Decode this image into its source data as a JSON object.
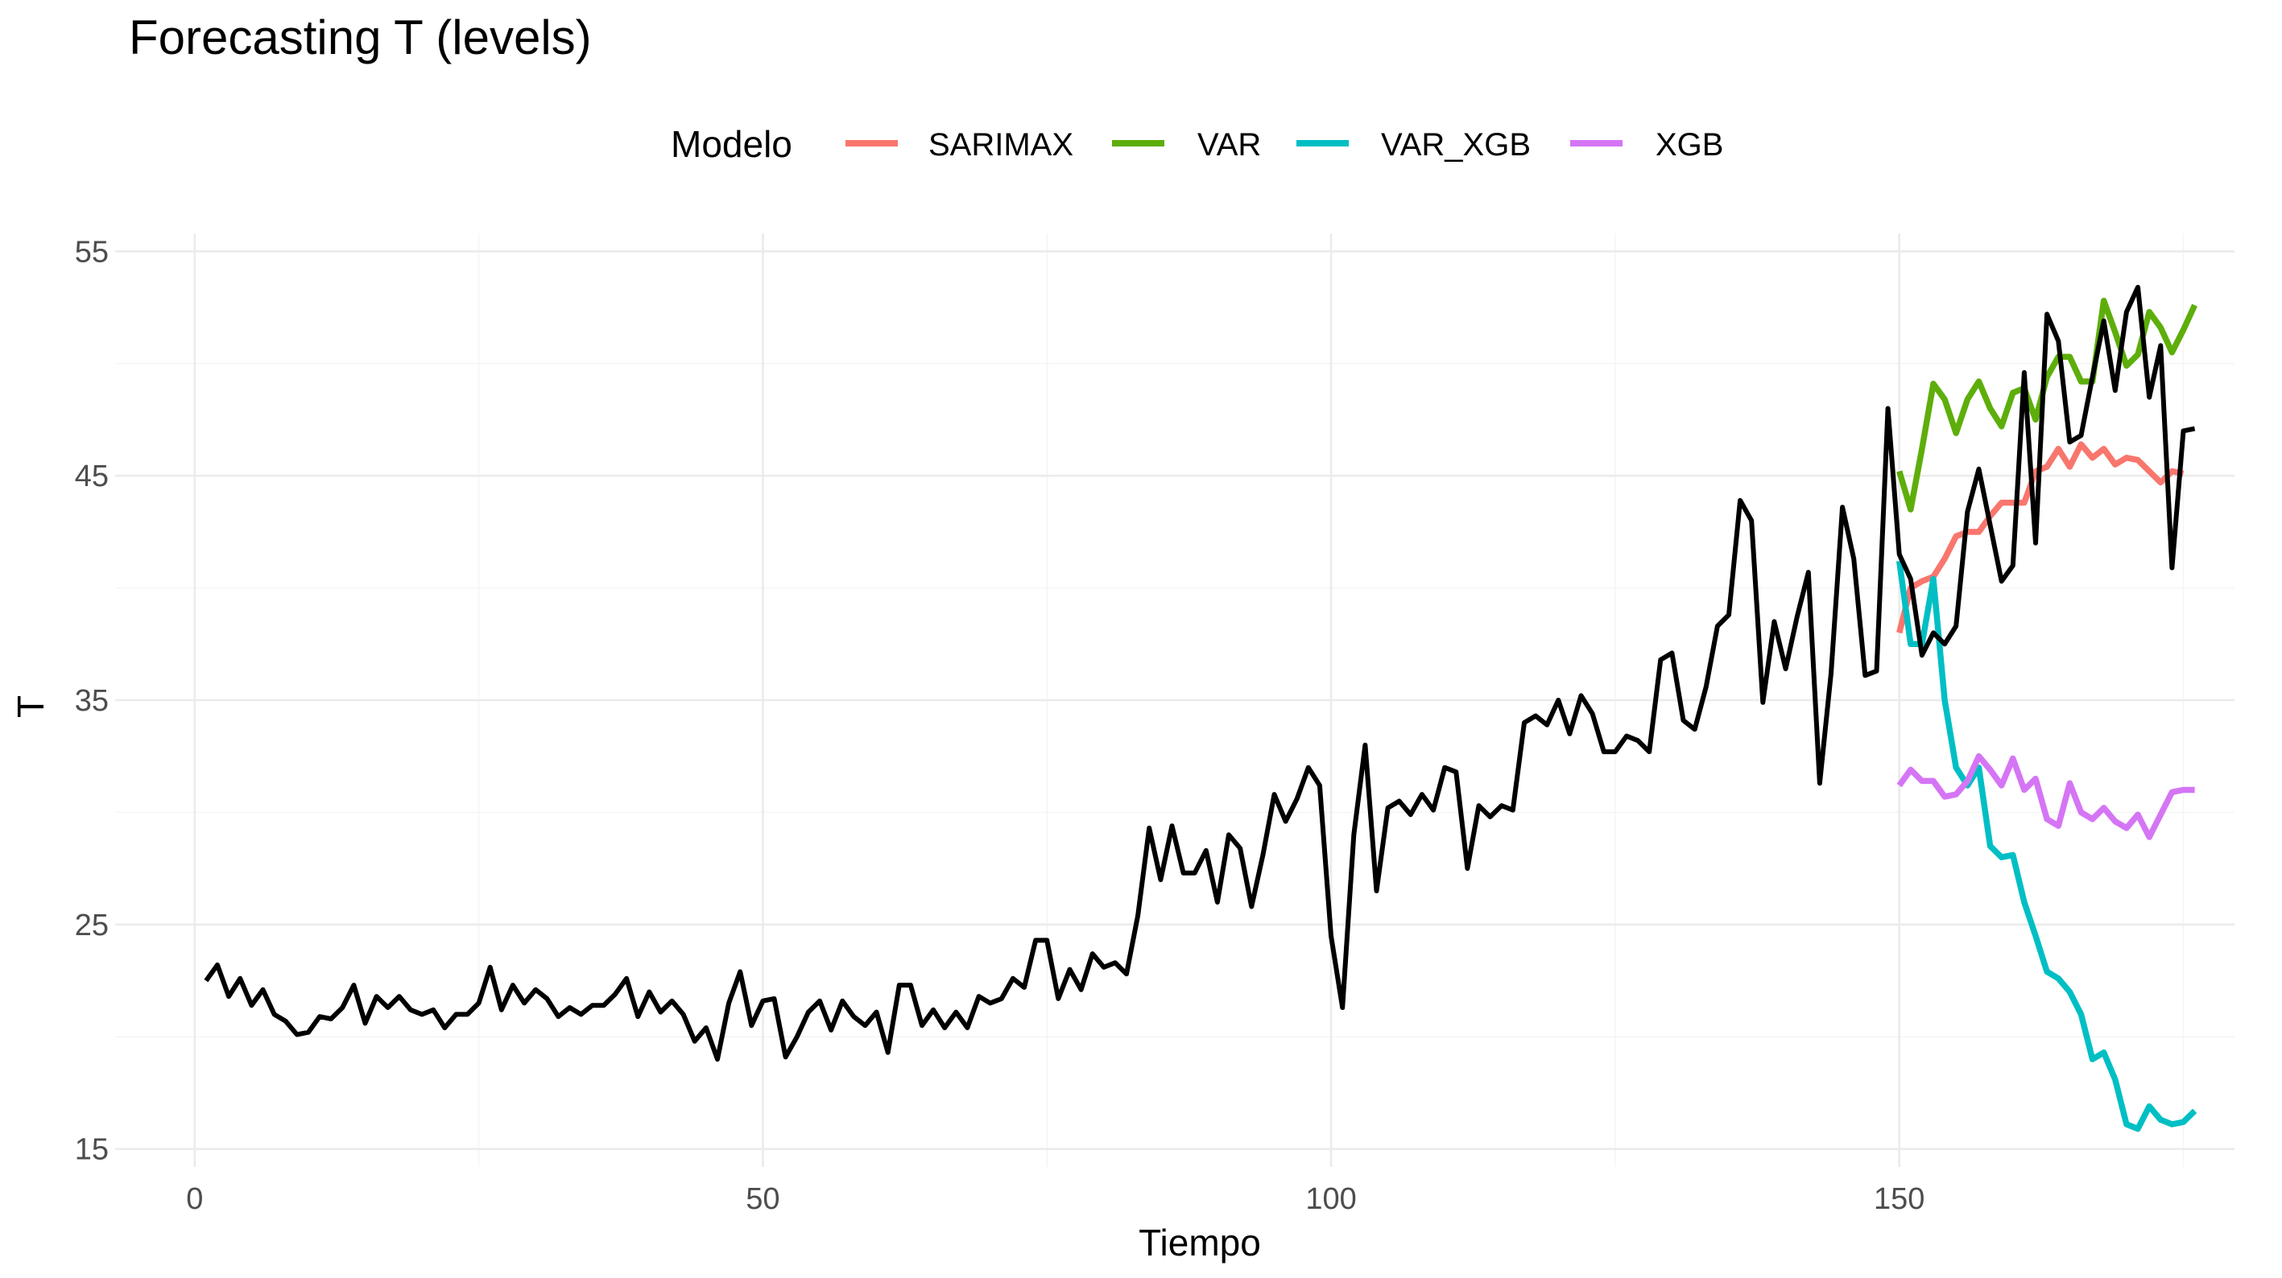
{
  "chart_data": {
    "type": "line",
    "title": "Forecasting T (levels)",
    "xlabel": "Tiempo",
    "ylabel": "T",
    "xlim": [
      -7,
      179.5
    ],
    "ylim": [
      14.2,
      55.8
    ],
    "x_ticks": [
      0,
      50,
      100,
      150
    ],
    "y_ticks": [
      15,
      25,
      35,
      45,
      55
    ],
    "grid": true,
    "legend": {
      "title": "Modelo",
      "position": "top",
      "entries": [
        "SARIMAX",
        "VAR",
        "VAR_XGB",
        "XGB"
      ]
    },
    "colors": {
      "observed": "#000000",
      "SARIMAX": "#F8766D",
      "VAR": "#5DAE0B",
      "VAR_XGB": "#00BFC4",
      "XGB": "#D575F5"
    },
    "observed": {
      "x_start": 1,
      "values": [
        22.5,
        23.2,
        21.8,
        22.6,
        21.4,
        22.1,
        21.0,
        20.7,
        20.1,
        20.2,
        20.9,
        20.8,
        21.3,
        22.3,
        20.6,
        21.8,
        21.3,
        21.8,
        21.2,
        21.0,
        21.2,
        20.4,
        21.0,
        21.0,
        21.5,
        23.1,
        21.2,
        22.3,
        21.5,
        22.1,
        21.7,
        20.9,
        21.3,
        21.0,
        21.4,
        21.4,
        21.9,
        22.6,
        20.9,
        22.0,
        21.1,
        21.6,
        21.0,
        19.8,
        20.4,
        19.0,
        21.5,
        22.9,
        20.5,
        21.6,
        21.7,
        19.1,
        20.0,
        21.1,
        21.6,
        20.3,
        21.6,
        20.9,
        20.5,
        21.1,
        19.3,
        22.3,
        22.3,
        20.5,
        21.2,
        20.4,
        21.1,
        20.4,
        21.8,
        21.5,
        21.7,
        22.6,
        22.2,
        24.3,
        24.3,
        21.7,
        23.0,
        22.1,
        23.7,
        23.1,
        23.3,
        22.8,
        25.4,
        29.3,
        27.0,
        29.4,
        27.3,
        27.3,
        28.3,
        26.0,
        29.0,
        28.4,
        25.8,
        28.1,
        30.8,
        29.6,
        30.6,
        32.0,
        31.2,
        24.5,
        21.3,
        29.0,
        33.0,
        26.5,
        30.2,
        30.5,
        29.9,
        30.8,
        30.1,
        32.0,
        31.8,
        27.5,
        30.3,
        29.8,
        30.3,
        30.1,
        34.0,
        34.3,
        33.9,
        35.0,
        33.5,
        35.2,
        34.4,
        32.7,
        32.7,
        33.4,
        33.2,
        32.7,
        36.8,
        37.1,
        34.1,
        33.7,
        35.6,
        38.3,
        38.8,
        43.9,
        43.0,
        34.9,
        38.5,
        36.4,
        38.7,
        40.7,
        31.3,
        36.2,
        43.6,
        41.3,
        36.1,
        36.3,
        48.0,
        41.5,
        40.4,
        37.0,
        38.0,
        37.5,
        38.3,
        43.4,
        45.3,
        42.8,
        40.3,
        41.0,
        49.6,
        42.0,
        52.2,
        51.0,
        46.5,
        46.8,
        49.4,
        51.9,
        48.8,
        52.3,
        53.4,
        48.5,
        50.8,
        40.9,
        47.0,
        47.1
      ]
    },
    "series": [
      {
        "name": "SARIMAX",
        "x_start": 150,
        "values": [
          38.0,
          40.0,
          40.3,
          40.5,
          41.3,
          42.3,
          42.5,
          42.5,
          43.2,
          43.8,
          43.8,
          43.8,
          45.2,
          45.4,
          46.2,
          45.4,
          46.4,
          45.8,
          46.2,
          45.5,
          45.8,
          45.7,
          45.2,
          44.7,
          45.2,
          45.1
        ]
      },
      {
        "name": "VAR",
        "x_start": 150,
        "values": [
          45.2,
          43.5,
          46.2,
          49.1,
          48.4,
          46.9,
          48.4,
          49.2,
          48.0,
          47.2,
          48.7,
          48.9,
          47.5,
          49.4,
          50.3,
          50.3,
          49.2,
          49.2,
          52.8,
          51.4,
          49.9,
          50.4,
          52.3,
          51.6,
          50.5,
          51.5,
          52.6
        ]
      },
      {
        "name": "VAR_XGB",
        "x_start": 150,
        "values": [
          41.2,
          37.5,
          37.5,
          40.4,
          35.0,
          32.0,
          31.2,
          32.0,
          28.5,
          28.0,
          28.1,
          26.0,
          24.5,
          22.9,
          22.6,
          22.0,
          21.0,
          19.0,
          19.3,
          18.1,
          16.1,
          15.9,
          16.9,
          16.3,
          16.1,
          16.2,
          16.7
        ]
      },
      {
        "name": "XGB",
        "x_start": 150,
        "values": [
          31.2,
          31.9,
          31.4,
          31.4,
          30.7,
          30.8,
          31.4,
          32.5,
          31.9,
          31.2,
          32.4,
          31.0,
          31.5,
          29.7,
          29.4,
          31.3,
          30.0,
          29.7,
          30.2,
          29.6,
          29.3,
          29.9,
          28.9,
          29.9,
          30.9,
          31.0,
          31.0
        ]
      }
    ]
  }
}
